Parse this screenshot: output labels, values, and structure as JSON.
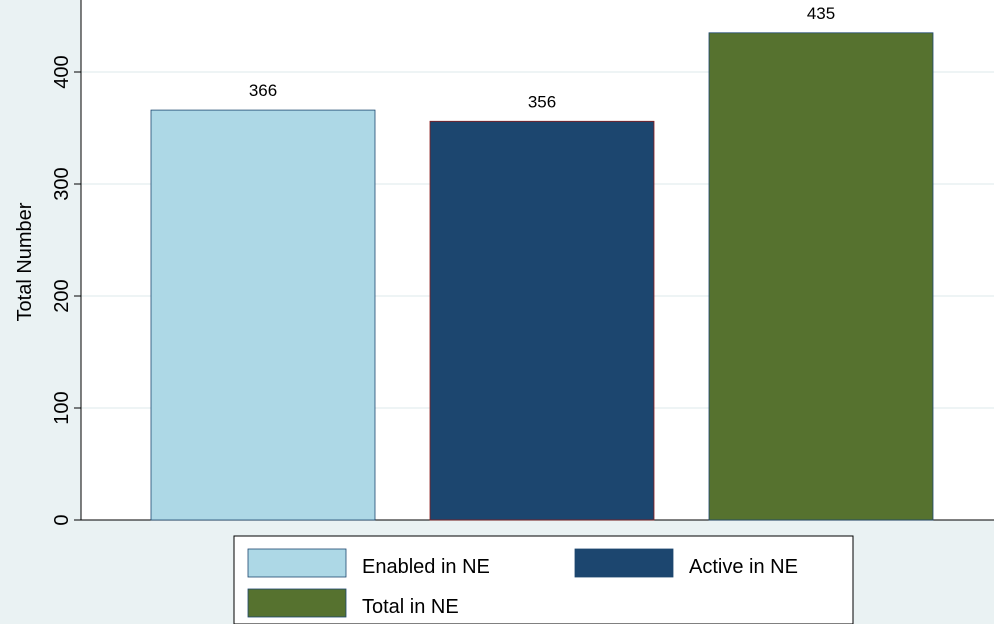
{
  "chart_data": {
    "type": "bar",
    "title": "",
    "xlabel": "",
    "ylabel": "Total Number",
    "ylim": [
      0,
      450
    ],
    "yticks": [
      0,
      100,
      200,
      300,
      400
    ],
    "grid": true,
    "legend_position": "bottom",
    "categories": [
      "Enabled in NE",
      "Active in NE",
      "Total in NE"
    ],
    "values": [
      366,
      356,
      435
    ],
    "colors": [
      "#add8e6",
      "#1c466f",
      "#56722f"
    ],
    "data_labels": [
      "366",
      "356",
      "435"
    ]
  },
  "style": {
    "background": "#eaf2f3",
    "plot_background": "#ffffff",
    "grid_color": "#e8f0f2"
  }
}
